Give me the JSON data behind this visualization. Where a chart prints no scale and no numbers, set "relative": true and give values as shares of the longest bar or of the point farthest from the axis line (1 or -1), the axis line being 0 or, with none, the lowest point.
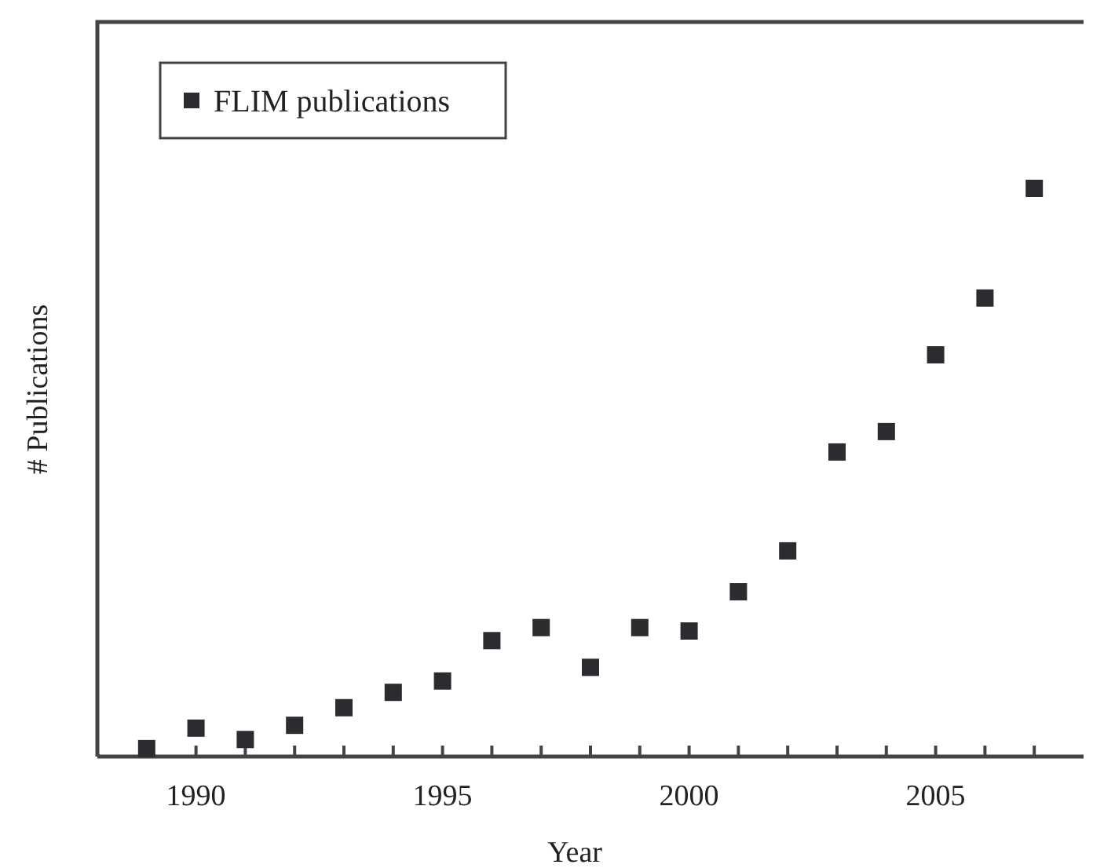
{
  "chart_data": {
    "type": "scatter",
    "xlabel": "Year",
    "ylabel": "# Publications",
    "relative": true,
    "marker": "square",
    "legend": "top left",
    "xlim": [
      1988,
      2008
    ],
    "xticks": [
      {
        "value": 1988,
        "label": null
      },
      {
        "value": 1989,
        "label": null
      },
      1990,
      {
        "value": 1991,
        "label": null
      },
      {
        "value": 1992,
        "label": null
      },
      {
        "value": 1993,
        "label": null
      },
      {
        "value": 1994,
        "label": null
      },
      1995,
      {
        "value": 1996,
        "label": null
      },
      {
        "value": 1997,
        "label": null
      },
      {
        "value": 1998,
        "label": null
      },
      {
        "value": 1999,
        "label": null
      },
      2000,
      {
        "value": 2001,
        "label": null
      },
      {
        "value": 2002,
        "label": null
      },
      {
        "value": 2003,
        "label": null
      },
      {
        "value": 2004,
        "label": null
      },
      2005,
      {
        "value": 2006,
        "label": null
      },
      {
        "value": 2007,
        "label": null
      }
    ],
    "x": [
      1989,
      1990,
      1991,
      1992,
      1993,
      1994,
      1995,
      1996,
      1997,
      1998,
      1999,
      2000,
      2001,
      2002,
      2003,
      2004,
      2005,
      2006,
      2007
    ],
    "series": [
      {
        "name": "FLIM publications",
        "color": "#2b2b30",
        "values": [
          0.014,
          0.05,
          0.03,
          0.055,
          0.086,
          0.113,
          0.133,
          0.204,
          0.227,
          0.157,
          0.227,
          0.221,
          0.29,
          0.362,
          0.536,
          0.572,
          0.707,
          0.807,
          1
        ]
      }
    ]
  }
}
